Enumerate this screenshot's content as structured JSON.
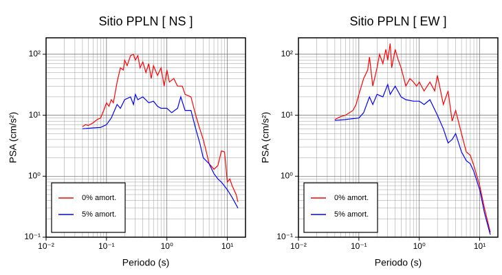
{
  "chart_data": [
    {
      "type": "line",
      "title": "Sitio PPLN [ NS ]",
      "x_label": "Periodo (s)",
      "y_label": "PSA (cm/s²)",
      "log_x": true,
      "log_y": true,
      "grid": true,
      "minor_grid": true,
      "legend": "lower left",
      "xlim": [
        0.01,
        20
      ],
      "ylim": [
        0.1,
        186
      ],
      "xticks": [
        {
          "value": 0.01,
          "label": "10⁻²"
        },
        {
          "value": 0.1,
          "label": "10⁻¹"
        },
        {
          "value": 1,
          "label": "10⁰"
        },
        {
          "value": 10,
          "label": "10¹"
        }
      ],
      "yticks": [
        {
          "value": 0.1,
          "label": "10⁻¹"
        },
        {
          "value": 1,
          "label": "10⁰"
        },
        {
          "value": 10,
          "label": "10¹"
        },
        {
          "value": 100,
          "label": "10²"
        }
      ],
      "series": [
        {
          "name": "0% amort.",
          "color": "#ff0000",
          "x": [
            0.04,
            0.045,
            0.05,
            0.06,
            0.07,
            0.08,
            0.09,
            0.1,
            0.11,
            0.12,
            0.13,
            0.15,
            0.17,
            0.19,
            0.2,
            0.22,
            0.25,
            0.28,
            0.3,
            0.33,
            0.36,
            0.4,
            0.45,
            0.5,
            0.55,
            0.6,
            0.7,
            0.8,
            0.9,
            1.0,
            1.1,
            1.3,
            1.5,
            1.8,
            2.0,
            2.5,
            3.0,
            3.5,
            4,
            4.5,
            5,
            6,
            7,
            8,
            9,
            10,
            11,
            12,
            14,
            15
          ],
          "values": [
            6.5,
            7,
            6.8,
            7.5,
            8.5,
            9,
            12,
            16,
            14,
            18,
            16,
            35,
            60,
            55,
            80,
            65,
            95,
            100,
            80,
            95,
            60,
            75,
            50,
            70,
            40,
            65,
            45,
            60,
            30,
            55,
            35,
            40,
            30,
            30,
            22,
            20,
            10,
            6,
            4,
            2.5,
            1.6,
            1.3,
            1.5,
            2.6,
            2.5,
            0.8,
            0.9,
            0.7,
            0.5,
            0.38
          ]
        },
        {
          "name": "5% amort.",
          "color": "#0000ff",
          "x": [
            0.04,
            0.06,
            0.08,
            0.1,
            0.12,
            0.15,
            0.17,
            0.2,
            0.25,
            0.28,
            0.3,
            0.33,
            0.4,
            0.5,
            0.6,
            0.7,
            0.8,
            1.0,
            1.2,
            1.5,
            1.7,
            2,
            2.5,
            3,
            3.5,
            4,
            5,
            6,
            7,
            8,
            10,
            12,
            15
          ],
          "values": [
            6,
            6.2,
            6.3,
            7,
            9,
            15,
            13,
            18,
            20,
            15,
            22,
            18,
            20,
            16,
            17,
            14,
            13,
            13,
            11,
            13,
            20,
            12,
            12,
            6,
            3.5,
            2,
            1.6,
            1.1,
            0.9,
            0.8,
            0.6,
            0.45,
            0.3
          ]
        }
      ]
    },
    {
      "type": "line",
      "title": "Sitio PPLN [ EW ]",
      "x_label": "Periodo (s)",
      "y_label": "PSA (cm/s²)",
      "log_x": true,
      "log_y": true,
      "grid": true,
      "minor_grid": true,
      "legend": "lower left",
      "xlim": [
        0.01,
        20
      ],
      "ylim": [
        0.1,
        186
      ],
      "xticks": [
        {
          "value": 0.01,
          "label": "10⁻²"
        },
        {
          "value": 0.1,
          "label": "10⁻¹"
        },
        {
          "value": 1,
          "label": "10⁰"
        },
        {
          "value": 10,
          "label": "10¹"
        }
      ],
      "yticks": [
        {
          "value": 0.1,
          "label": "10⁻¹"
        },
        {
          "value": 1,
          "label": "10⁰"
        },
        {
          "value": 10,
          "label": "10¹"
        },
        {
          "value": 100,
          "label": "10²"
        }
      ],
      "series": [
        {
          "name": "0% amort.",
          "color": "#ff0000",
          "x": [
            0.04,
            0.05,
            0.06,
            0.07,
            0.08,
            0.09,
            0.1,
            0.11,
            0.12,
            0.14,
            0.15,
            0.17,
            0.2,
            0.22,
            0.25,
            0.28,
            0.3,
            0.33,
            0.35,
            0.4,
            0.45,
            0.5,
            0.6,
            0.7,
            0.8,
            0.9,
            1,
            1.2,
            1.5,
            1.8,
            2,
            2.5,
            3,
            3.5,
            4,
            5,
            6,
            7,
            8,
            10,
            12,
            15
          ],
          "values": [
            8.5,
            9.5,
            10,
            11,
            12,
            15,
            22,
            30,
            40,
            55,
            90,
            30,
            60,
            100,
            70,
            120,
            80,
            150,
            60,
            120,
            80,
            60,
            30,
            40,
            35,
            30,
            35,
            25,
            35,
            25,
            45,
            15,
            25,
            8,
            12,
            5,
            2.5,
            2.2,
            1.5,
            0.7,
            0.3,
            0.12
          ]
        },
        {
          "name": "5% amort.",
          "color": "#0000ff",
          "x": [
            0.04,
            0.06,
            0.08,
            0.1,
            0.12,
            0.15,
            0.17,
            0.2,
            0.25,
            0.3,
            0.33,
            0.4,
            0.5,
            0.6,
            0.8,
            1,
            1.2,
            1.5,
            2,
            2.5,
            3,
            3.5,
            4,
            5,
            6,
            7,
            8,
            10,
            12,
            15
          ],
          "values": [
            8.2,
            8.5,
            8.8,
            9,
            11,
            20,
            15,
            22,
            20,
            32,
            22,
            30,
            20,
            18,
            17,
            17,
            15,
            18,
            10,
            6,
            3.5,
            4,
            5,
            2.5,
            1.8,
            1.6,
            1.2,
            0.6,
            0.25,
            0.11
          ]
        }
      ]
    }
  ]
}
